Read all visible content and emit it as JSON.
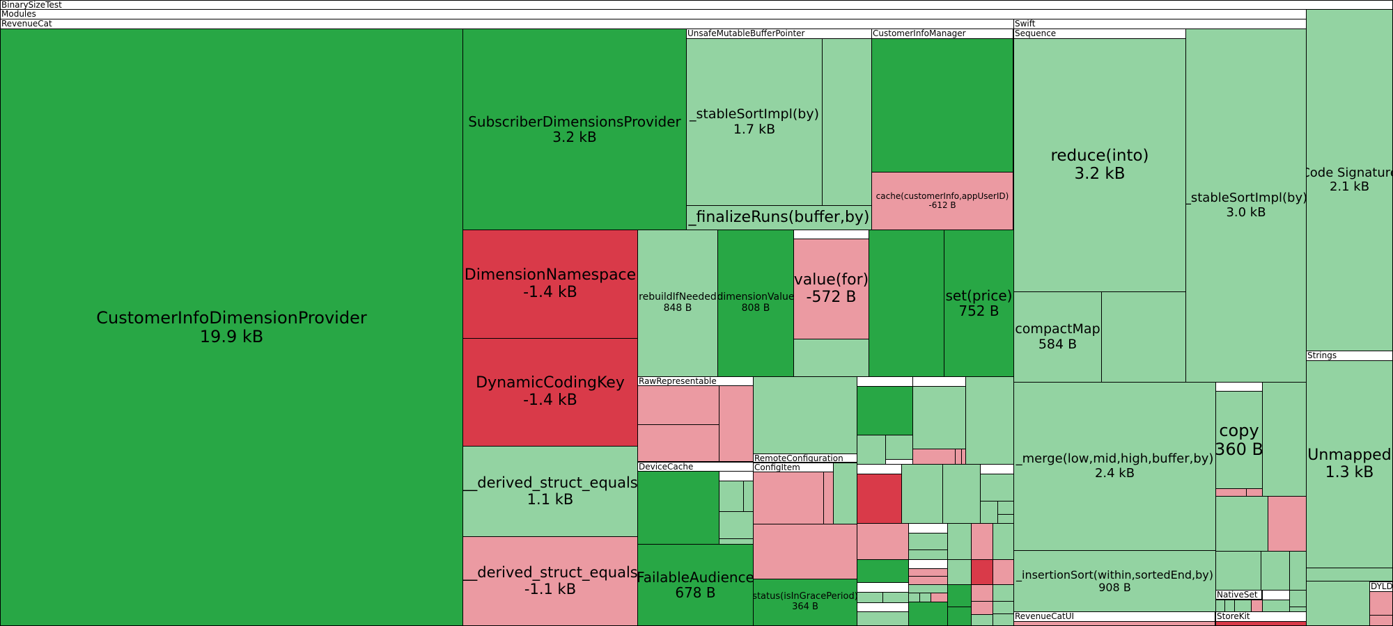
{
  "colors": {
    "strong-green": "#28a745",
    "light-green": "#93d3a2",
    "strong-red": "#d93a49",
    "light-red": "#eb9aa2",
    "header": "#ffffff"
  },
  "headers": {
    "binarysizetest": "BinarySizeTest",
    "modules": "Modules",
    "revenuecat": "RevenueCat",
    "swift": "Swift",
    "unsafemutablebufferpointer": "UnsafeMutableBufferPointer",
    "customerinfomanager": "CustomerInfoManager",
    "sequence": "Sequence",
    "rawrepresentable": "RawRepresentable",
    "remoteconfiguration": "RemoteConfiguration",
    "configitem": "ConfigItem",
    "devicecache": "DeviceCache",
    "strings": "Strings",
    "nativeset": "NativeSet",
    "revenuecatui": "RevenueCatUI",
    "storekit": "StoreKit",
    "dyld": "DYLD"
  },
  "chart_data": {
    "type": "treemap",
    "root": "BinarySizeTest",
    "groups": [
      "Modules",
      "RevenueCat",
      "Swift",
      "UnsafeMutableBufferPointer",
      "CustomerInfoManager",
      "Sequence",
      "RawRepresentable",
      "RemoteConfiguration",
      "ConfigItem",
      "DeviceCache",
      "Strings",
      "NativeSet",
      "RevenueCatUI",
      "StoreKit",
      "DYLD"
    ],
    "labels": {
      "customerinfodimensionprovider": {
        "name": "CustomerInfoDimensionProvider",
        "size": "19.9 kB"
      },
      "subscriberdimensionsprovider": {
        "name": "SubscriberDimensionsProvider",
        "size": "3.2 kB"
      },
      "stablesortimpl-1": {
        "name": "_stableSortImpl(by)",
        "size": "1.7 kB"
      },
      "finalizeruns": {
        "name": "_finalizeRuns(buffer,by)"
      },
      "cache-customerinfo": {
        "name": "cache(customerInfo,appUserID)",
        "size": "-612 B"
      },
      "dimensionnamespace": {
        "name": "DimensionNamespace",
        "size": "-1.4 kB"
      },
      "dynamiccodingkey": {
        "name": "DynamicCodingKey",
        "size": "-1.4 kB"
      },
      "derived-struct-equals-pos": {
        "name": "__derived_struct_equals",
        "size": "1.1 kB"
      },
      "derived-struct-equals-neg": {
        "name": "__derived_struct_equals",
        "size": "-1.1 kB"
      },
      "rebuildifneeded": {
        "name": "rebuildIfNeeded",
        "size": "848 B"
      },
      "dimensionvalue": {
        "name": "dimensionValue",
        "size": "808 B"
      },
      "value-for": {
        "name": "value(for)",
        "size": "-572 B"
      },
      "set-price": {
        "name": "set(price)",
        "size": "752 B"
      },
      "failableaudience": {
        "name": "FailableAudience",
        "size": "678 B"
      },
      "status-isingraceperiod": {
        "name": "status(isInGracePeriod)",
        "size": "364 B"
      },
      "reduce-into": {
        "name": "reduce(into)",
        "size": "3.2 kB"
      },
      "compactmap": {
        "name": "compactMap",
        "size": "584 B"
      },
      "stablesortimpl-2": {
        "name": "_stableSortImpl(by)",
        "size": "3.0 kB"
      },
      "merge": {
        "name": "_merge(low,mid,high,buffer,by)",
        "size": "2.4 kB"
      },
      "copy": {
        "name": "copy",
        "size": "360 B"
      },
      "insertionsort": {
        "name": "_insertionSort(within,sortedEnd,by)",
        "size": "908 B"
      },
      "code-signature": {
        "name": "Code Signature",
        "size": "2.1 kB"
      },
      "unmapped": {
        "name": "Unmapped",
        "size": "1.3 kB"
      }
    }
  }
}
